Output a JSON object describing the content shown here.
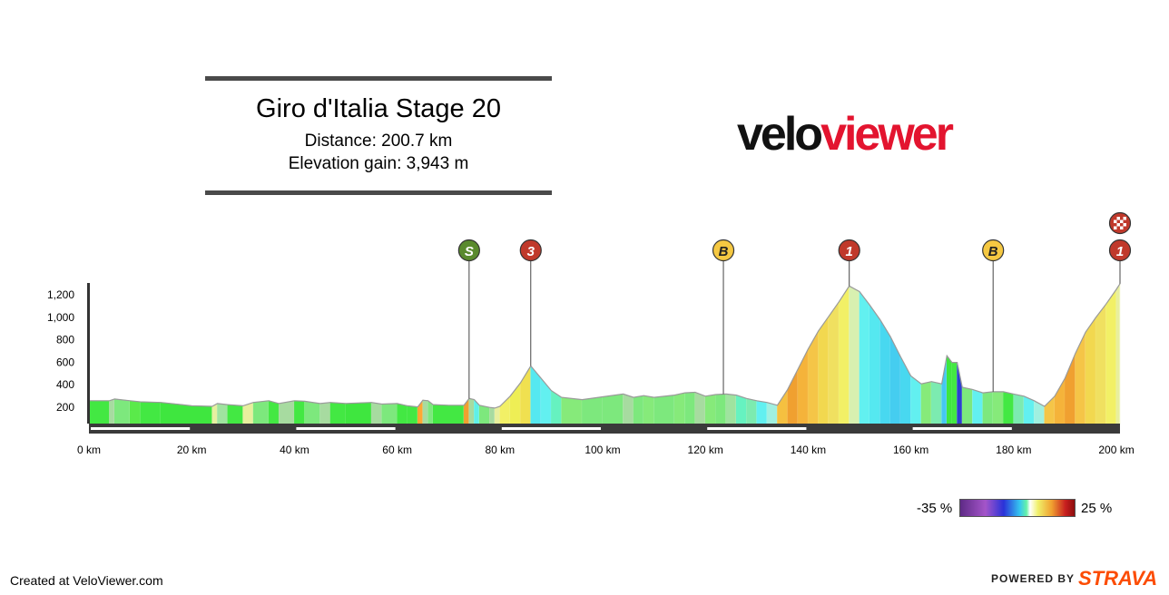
{
  "header": {
    "title": "Giro d'Italia Stage 20",
    "distance": "Distance: 200.7 km",
    "elevation": "Elevation gain: 3,943 m"
  },
  "logo": {
    "part1": "velo",
    "part2": "viewer",
    "color_dark": "#111111",
    "color_red": "#e3142f"
  },
  "legend": {
    "min_label": "-35 %",
    "max_label": "25 %"
  },
  "footer": {
    "created": "Created at VeloViewer.com",
    "powered": "POWERED BY",
    "brand": "STRAVA",
    "brand_color": "#fc4c02"
  },
  "chart_data": {
    "type": "area",
    "title": "Giro d'Italia Stage 20",
    "xlabel": "",
    "ylabel": "",
    "x_unit": "km",
    "xlim": [
      0,
      200.7
    ],
    "ylim": [
      100,
      1300
    ],
    "x_ticks": [
      0,
      20,
      40,
      60,
      80,
      100,
      120,
      140,
      160,
      180,
      200
    ],
    "x_tick_labels": [
      "0 km",
      "20 km",
      "40 km",
      "60 km",
      "80 km",
      "100 km",
      "120 km",
      "140 km",
      "160 km",
      "180 km",
      "200 km"
    ],
    "y_ticks": [
      200,
      400,
      600,
      800,
      1000,
      1200
    ],
    "y_tick_labels": [
      "200",
      "400",
      "600",
      "800",
      "1,000",
      "1,200"
    ],
    "grid": false,
    "series": [
      {
        "values": [
          [
            0,
            250
          ],
          [
            4,
            250
          ],
          [
            5,
            265
          ],
          [
            8,
            250
          ],
          [
            10,
            240
          ],
          [
            14,
            235
          ],
          [
            18,
            215
          ],
          [
            20,
            205
          ],
          [
            24,
            200
          ],
          [
            25,
            225
          ],
          [
            27,
            215
          ],
          [
            30,
            205
          ],
          [
            32,
            235
          ],
          [
            35,
            250
          ],
          [
            37,
            225
          ],
          [
            40,
            250
          ],
          [
            42,
            245
          ],
          [
            45,
            225
          ],
          [
            47,
            235
          ],
          [
            50,
            225
          ],
          [
            55,
            235
          ],
          [
            57,
            220
          ],
          [
            60,
            225
          ],
          [
            62,
            205
          ],
          [
            64,
            195
          ],
          [
            65,
            255
          ],
          [
            66,
            250
          ],
          [
            67,
            215
          ],
          [
            70,
            210
          ],
          [
            73,
            210
          ],
          [
            74,
            270
          ],
          [
            75,
            260
          ],
          [
            76,
            210
          ],
          [
            78,
            190
          ],
          [
            79,
            185
          ],
          [
            80,
            200
          ],
          [
            82,
            290
          ],
          [
            84,
            410
          ],
          [
            86,
            560
          ],
          [
            88,
            450
          ],
          [
            90,
            340
          ],
          [
            92,
            280
          ],
          [
            96,
            260
          ],
          [
            100,
            285
          ],
          [
            104,
            310
          ],
          [
            106,
            280
          ],
          [
            108,
            295
          ],
          [
            110,
            280
          ],
          [
            114,
            300
          ],
          [
            116,
            320
          ],
          [
            118,
            325
          ],
          [
            120,
            290
          ],
          [
            122,
            305
          ],
          [
            124,
            310
          ],
          [
            126,
            300
          ],
          [
            128,
            270
          ],
          [
            130,
            250
          ],
          [
            132,
            235
          ],
          [
            134,
            210
          ],
          [
            136,
            350
          ],
          [
            138,
            530
          ],
          [
            140,
            710
          ],
          [
            142,
            870
          ],
          [
            144,
            1000
          ],
          [
            146,
            1130
          ],
          [
            148,
            1270
          ],
          [
            150,
            1220
          ],
          [
            152,
            1100
          ],
          [
            154,
            970
          ],
          [
            156,
            820
          ],
          [
            158,
            640
          ],
          [
            160,
            470
          ],
          [
            162,
            400
          ],
          [
            164,
            420
          ],
          [
            166,
            400
          ],
          [
            167,
            650
          ],
          [
            168,
            590
          ],
          [
            169,
            590
          ],
          [
            170,
            370
          ],
          [
            172,
            350
          ],
          [
            174,
            320
          ],
          [
            176,
            330
          ],
          [
            178,
            330
          ],
          [
            180,
            310
          ],
          [
            182,
            290
          ],
          [
            184,
            250
          ],
          [
            186,
            200
          ],
          [
            188,
            290
          ],
          [
            190,
            450
          ],
          [
            192,
            670
          ],
          [
            194,
            860
          ],
          [
            196,
            990
          ],
          [
            198,
            1110
          ],
          [
            200,
            1240
          ],
          [
            200.7,
            1290
          ]
        ]
      }
    ],
    "gradient_segments": [
      {
        "from": 0,
        "to": 4,
        "color": "#43e843"
      },
      {
        "from": 4,
        "to": 5,
        "color": "#a7dba0"
      },
      {
        "from": 5,
        "to": 8,
        "color": "#7de87d"
      },
      {
        "from": 8,
        "to": 10,
        "color": "#5aea4a"
      },
      {
        "from": 10,
        "to": 14,
        "color": "#43e843"
      },
      {
        "from": 14,
        "to": 24,
        "color": "#3fe63f"
      },
      {
        "from": 24,
        "to": 25,
        "color": "#e6f0a0"
      },
      {
        "from": 25,
        "to": 27,
        "color": "#9fe39f"
      },
      {
        "from": 27,
        "to": 30,
        "color": "#43e843"
      },
      {
        "from": 30,
        "to": 32,
        "color": "#e8ef9e"
      },
      {
        "from": 32,
        "to": 35,
        "color": "#7de87d"
      },
      {
        "from": 35,
        "to": 37,
        "color": "#43e843"
      },
      {
        "from": 37,
        "to": 40,
        "color": "#a7dba0"
      },
      {
        "from": 40,
        "to": 42,
        "color": "#43e843"
      },
      {
        "from": 42,
        "to": 45,
        "color": "#7de87d"
      },
      {
        "from": 45,
        "to": 47,
        "color": "#a7dba0"
      },
      {
        "from": 47,
        "to": 50,
        "color": "#43e843"
      },
      {
        "from": 50,
        "to": 55,
        "color": "#3fe63f"
      },
      {
        "from": 55,
        "to": 57,
        "color": "#a7dba0"
      },
      {
        "from": 57,
        "to": 60,
        "color": "#7de87d"
      },
      {
        "from": 60,
        "to": 62,
        "color": "#43e843"
      },
      {
        "from": 62,
        "to": 64,
        "color": "#43e843"
      },
      {
        "from": 64,
        "to": 65,
        "color": "#ffa733"
      },
      {
        "from": 65,
        "to": 66,
        "color": "#a7dba0"
      },
      {
        "from": 66,
        "to": 67,
        "color": "#7de87d"
      },
      {
        "from": 67,
        "to": 73,
        "color": "#43e843"
      },
      {
        "from": 73,
        "to": 74,
        "color": "#f0a030"
      },
      {
        "from": 74,
        "to": 75,
        "color": "#a7dba0"
      },
      {
        "from": 75,
        "to": 76,
        "color": "#5ff0e8"
      },
      {
        "from": 76,
        "to": 78,
        "color": "#7de87d"
      },
      {
        "from": 78,
        "to": 79,
        "color": "#a7dba0"
      },
      {
        "from": 79,
        "to": 80,
        "color": "#e8ef9e"
      },
      {
        "from": 80,
        "to": 82,
        "color": "#f2f066"
      },
      {
        "from": 82,
        "to": 84,
        "color": "#eeee55"
      },
      {
        "from": 84,
        "to": 86,
        "color": "#f0e050"
      },
      {
        "from": 86,
        "to": 88,
        "color": "#55e8f0"
      },
      {
        "from": 88,
        "to": 90,
        "color": "#62f0f0"
      },
      {
        "from": 90,
        "to": 92,
        "color": "#66f2c0"
      },
      {
        "from": 92,
        "to": 96,
        "color": "#86ea7a"
      },
      {
        "from": 96,
        "to": 100,
        "color": "#7de87d"
      },
      {
        "from": 100,
        "to": 104,
        "color": "#7de87d"
      },
      {
        "from": 104,
        "to": 106,
        "color": "#a7dba0"
      },
      {
        "from": 106,
        "to": 108,
        "color": "#7de87d"
      },
      {
        "from": 108,
        "to": 110,
        "color": "#86ea7a"
      },
      {
        "from": 110,
        "to": 114,
        "color": "#7de87d"
      },
      {
        "from": 114,
        "to": 116,
        "color": "#86ea7a"
      },
      {
        "from": 116,
        "to": 118,
        "color": "#7de87d"
      },
      {
        "from": 118,
        "to": 120,
        "color": "#a7dba0"
      },
      {
        "from": 120,
        "to": 122,
        "color": "#86ea7a"
      },
      {
        "from": 122,
        "to": 124,
        "color": "#7de87d"
      },
      {
        "from": 124,
        "to": 126,
        "color": "#9fe39f"
      },
      {
        "from": 126,
        "to": 128,
        "color": "#66f2c0"
      },
      {
        "from": 128,
        "to": 130,
        "color": "#7cebb0"
      },
      {
        "from": 130,
        "to": 132,
        "color": "#62f0f0"
      },
      {
        "from": 132,
        "to": 134,
        "color": "#a0f0e0"
      },
      {
        "from": 134,
        "to": 136,
        "color": "#f5c040"
      },
      {
        "from": 136,
        "to": 138,
        "color": "#f0a030"
      },
      {
        "from": 138,
        "to": 140,
        "color": "#f5b33a"
      },
      {
        "from": 140,
        "to": 142,
        "color": "#f5c547"
      },
      {
        "from": 142,
        "to": 144,
        "color": "#f2d84f"
      },
      {
        "from": 144,
        "to": 146,
        "color": "#f0e060"
      },
      {
        "from": 146,
        "to": 148,
        "color": "#f2f066"
      },
      {
        "from": 148,
        "to": 150,
        "color": "#d8f0b0"
      },
      {
        "from": 150,
        "to": 152,
        "color": "#62f0f0"
      },
      {
        "from": 152,
        "to": 154,
        "color": "#55e8f0"
      },
      {
        "from": 154,
        "to": 156,
        "color": "#48d8f0"
      },
      {
        "from": 156,
        "to": 158,
        "color": "#45cdf0"
      },
      {
        "from": 158,
        "to": 160,
        "color": "#48d8f0"
      },
      {
        "from": 160,
        "to": 162,
        "color": "#62f0f0"
      },
      {
        "from": 162,
        "to": 164,
        "color": "#86ea7a"
      },
      {
        "from": 164,
        "to": 166,
        "color": "#7cebb0"
      },
      {
        "from": 166,
        "to": 167,
        "color": "#45c8f0"
      },
      {
        "from": 167,
        "to": 168,
        "color": "#3fe63f"
      },
      {
        "from": 168,
        "to": 169,
        "color": "#43e843"
      },
      {
        "from": 169,
        "to": 170,
        "color": "#2d3fd0"
      },
      {
        "from": 170,
        "to": 172,
        "color": "#7de87d"
      },
      {
        "from": 172,
        "to": 174,
        "color": "#62f0f0"
      },
      {
        "from": 174,
        "to": 176,
        "color": "#7de87d"
      },
      {
        "from": 176,
        "to": 178,
        "color": "#86ea7a"
      },
      {
        "from": 178,
        "to": 180,
        "color": "#43e843"
      },
      {
        "from": 180,
        "to": 182,
        "color": "#7cebb0"
      },
      {
        "from": 182,
        "to": 184,
        "color": "#62f0f0"
      },
      {
        "from": 184,
        "to": 186,
        "color": "#a0f0e0"
      },
      {
        "from": 186,
        "to": 188,
        "color": "#f5c547"
      },
      {
        "from": 188,
        "to": 190,
        "color": "#f5b33a"
      },
      {
        "from": 190,
        "to": 192,
        "color": "#f0a030"
      },
      {
        "from": 192,
        "to": 194,
        "color": "#f5c547"
      },
      {
        "from": 194,
        "to": 196,
        "color": "#f2d84f"
      },
      {
        "from": 196,
        "to": 198,
        "color": "#f0e060"
      },
      {
        "from": 198,
        "to": 200,
        "color": "#f2f066"
      },
      {
        "from": 200,
        "to": 200.7,
        "color": "#e8ef9e"
      }
    ],
    "markers": [
      {
        "km": 74,
        "label": "S",
        "color": "#5a8a2e"
      },
      {
        "km": 86,
        "label": "3",
        "color": "#c0392b"
      },
      {
        "km": 123.5,
        "label": "B",
        "color": "#f5c842"
      },
      {
        "km": 148,
        "label": "1",
        "color": "#c0392b"
      },
      {
        "km": 176,
        "label": "B",
        "color": "#f5c842"
      },
      {
        "km": 200.7,
        "label": "1",
        "color": "#c0392b",
        "finish": true
      }
    ],
    "distance_bands": [
      [
        0,
        20
      ],
      [
        40,
        60
      ],
      [
        80,
        100
      ],
      [
        120,
        140
      ],
      [
        160,
        180
      ]
    ]
  }
}
